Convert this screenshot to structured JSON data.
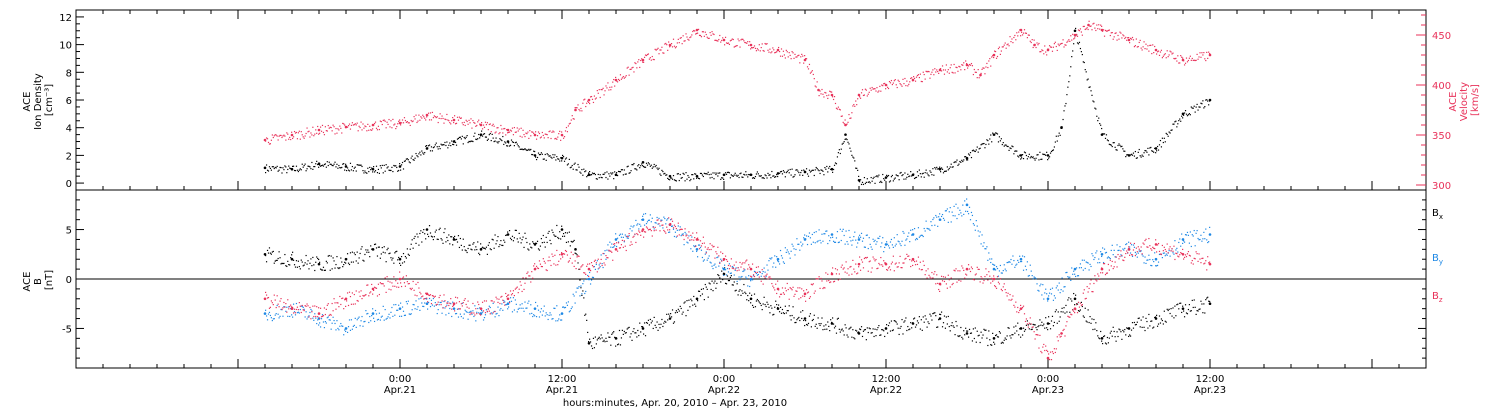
{
  "figure": {
    "x_axis_title": "hours:minutes, Apr. 20, 2010 – Apr. 23, 2010"
  },
  "colors": {
    "black": "#000000",
    "red": "#e8325a",
    "blue": "#1e88e5"
  },
  "chart_data": [
    {
      "type": "scatter",
      "title": "",
      "ylabel_left": [
        "ACE",
        "Ion Density",
        "[cm⁻³]"
      ],
      "ylabel_right": [
        "ACE",
        "Velocity",
        "[km/s]"
      ],
      "x_range_hours": [
        0,
        100
      ],
      "x_ticks": [
        {
          "hour": 24,
          "time": "0:00",
          "date": "Apr.21"
        },
        {
          "hour": 36,
          "time": "12:00",
          "date": "Apr.21"
        },
        {
          "hour": 48,
          "time": "0:00",
          "date": "Apr.22"
        },
        {
          "hour": 60,
          "time": "12:00",
          "date": "Apr.22"
        },
        {
          "hour": 72,
          "time": "0:00",
          "date": "Apr.23"
        },
        {
          "hour": 84,
          "time": "12:00",
          "date": "Apr.23"
        }
      ],
      "left_axis": {
        "range": [
          -0.5,
          12.5
        ],
        "ticks": [
          0,
          2,
          4,
          6,
          8,
          10,
          12
        ]
      },
      "right_axis": {
        "range": [
          295,
          475
        ],
        "ticks": [
          300,
          350,
          400,
          450
        ]
      },
      "series": [
        {
          "axis": "left",
          "color": "black",
          "x": [
            14,
            16,
            18,
            20,
            22,
            24,
            26,
            28,
            30,
            32,
            34,
            36,
            38,
            40,
            42,
            44,
            46,
            48,
            50,
            52,
            54,
            56,
            57,
            58,
            60,
            62,
            64,
            66,
            68,
            70,
            72,
            73,
            74,
            76,
            78,
            80,
            82,
            84
          ],
          "y": [
            1.1,
            1.0,
            1.4,
            1.2,
            1.0,
            1.2,
            2.5,
            3.0,
            3.5,
            3.0,
            2.0,
            1.8,
            0.6,
            0.6,
            1.5,
            0.5,
            0.5,
            0.6,
            0.6,
            0.7,
            0.8,
            1.0,
            3.5,
            0.2,
            0.4,
            0.6,
            1.0,
            1.8,
            3.5,
            2.0,
            2.0,
            4.0,
            11.0,
            3.5,
            2.0,
            2.5,
            5.0,
            6.0
          ]
        },
        {
          "axis": "right",
          "color": "red",
          "x": [
            14,
            16,
            18,
            20,
            22,
            24,
            26,
            28,
            30,
            32,
            34,
            36,
            37,
            38,
            40,
            42,
            44,
            46,
            48,
            50,
            52,
            54,
            55,
            56,
            57,
            58,
            60,
            62,
            64,
            66,
            67,
            68,
            70,
            71,
            72,
            74,
            75,
            76,
            78,
            80,
            82,
            84
          ],
          "y": [
            345,
            350,
            355,
            358,
            360,
            362,
            370,
            365,
            360,
            355,
            350,
            350,
            375,
            385,
            405,
            425,
            440,
            455,
            445,
            440,
            435,
            425,
            395,
            390,
            360,
            390,
            400,
            405,
            415,
            420,
            410,
            430,
            455,
            440,
            435,
            450,
            460,
            455,
            445,
            435,
            425,
            430
          ]
        }
      ]
    },
    {
      "type": "scatter",
      "title": "",
      "ylabel_left": [
        "ACE",
        "B",
        "[nT]"
      ],
      "x_range_hours": [
        0,
        100
      ],
      "y_range": [
        -9,
        9
      ],
      "y_ticks": [
        -5,
        0,
        5
      ],
      "legend_position": "right",
      "legend": [
        {
          "name": "B",
          "sub": "x",
          "color": "black"
        },
        {
          "name": "B",
          "sub": "y",
          "color": "blue"
        },
        {
          "name": "B",
          "sub": "z",
          "color": "red"
        }
      ],
      "series": [
        {
          "color": "black",
          "x": [
            14,
            16,
            18,
            20,
            22,
            24,
            26,
            28,
            30,
            32,
            34,
            36,
            37,
            38,
            40,
            42,
            44,
            46,
            48,
            50,
            52,
            54,
            56,
            58,
            60,
            62,
            64,
            66,
            68,
            70,
            72,
            74,
            76,
            78,
            80,
            82,
            84
          ],
          "y": [
            2.5,
            2.0,
            1.5,
            2.0,
            3.0,
            2.0,
            5.0,
            4.0,
            3.0,
            4.5,
            3.5,
            5.0,
            3.0,
            -6.5,
            -6.0,
            -5.0,
            -4.0,
            -2.0,
            0.5,
            -2.0,
            -3.0,
            -4.0,
            -4.5,
            -5.5,
            -5.0,
            -4.5,
            -4.0,
            -5.5,
            -6.0,
            -5.0,
            -4.5,
            -2.0,
            -6.0,
            -5.0,
            -4.0,
            -3.0,
            -2.5
          ]
        },
        {
          "color": "blue",
          "x": [
            14,
            16,
            18,
            20,
            22,
            24,
            26,
            28,
            30,
            32,
            34,
            36,
            38,
            40,
            42,
            44,
            46,
            48,
            50,
            52,
            54,
            56,
            58,
            60,
            62,
            64,
            66,
            68,
            70,
            72,
            74,
            76,
            78,
            80,
            82,
            84
          ],
          "y": [
            -3.5,
            -3.0,
            -4.0,
            -5.0,
            -3.5,
            -3.0,
            -2.5,
            -3.0,
            -3.5,
            -2.5,
            -3.0,
            -3.5,
            0.0,
            4.0,
            6.0,
            5.5,
            3.0,
            1.0,
            0.0,
            2.0,
            4.0,
            4.5,
            4.0,
            3.5,
            4.5,
            6.0,
            7.5,
            1.0,
            2.0,
            -2.0,
            1.0,
            2.5,
            3.0,
            2.0,
            4.0,
            4.5
          ]
        },
        {
          "color": "red",
          "x": [
            14,
            16,
            18,
            20,
            22,
            24,
            26,
            28,
            30,
            32,
            34,
            36,
            38,
            40,
            42,
            44,
            46,
            48,
            50,
            52,
            54,
            56,
            58,
            60,
            62,
            64,
            66,
            68,
            70,
            72,
            73,
            74,
            76,
            78,
            80,
            82,
            84
          ],
          "y": [
            -2.0,
            -3.0,
            -3.5,
            -2.0,
            -1.0,
            0.0,
            -1.5,
            -2.5,
            -3.0,
            -2.0,
            1.0,
            2.5,
            1.0,
            3.0,
            5.0,
            5.5,
            4.0,
            2.0,
            1.0,
            -1.0,
            -1.5,
            0.5,
            1.5,
            1.5,
            2.0,
            -0.5,
            1.0,
            0.0,
            -3.0,
            -8.0,
            -5.5,
            -3.0,
            1.0,
            3.0,
            3.5,
            2.5,
            1.5
          ]
        }
      ]
    }
  ]
}
